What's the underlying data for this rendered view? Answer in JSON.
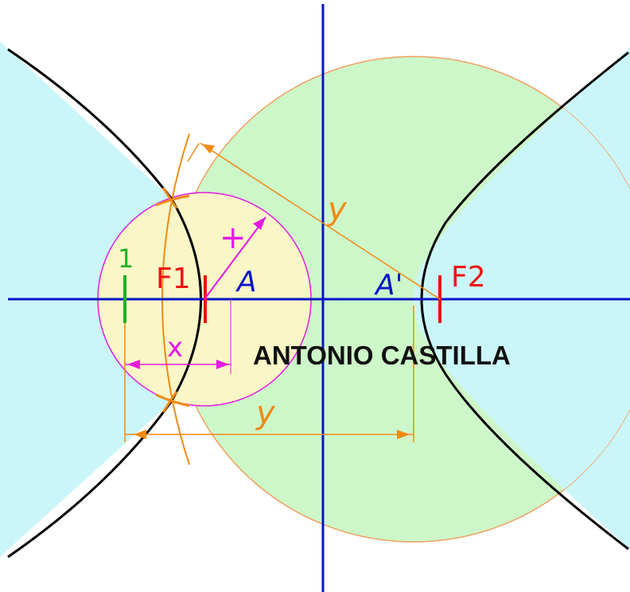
{
  "labels": {
    "f1": "F1",
    "f2": "F2",
    "a": "A",
    "a_prime": "A'",
    "one": "1",
    "x_top": "+",
    "x_bottom": "x",
    "y_top": "y",
    "y_bottom": "y"
  },
  "credit": "ANTONIO CASTILLA",
  "colors": {
    "axis": "#0a14c8",
    "curve": "#000000",
    "big_circle_fill": "#cdf7c9",
    "small_circle_fill": "#fbf6c7",
    "region_fill": "#cbf6f9",
    "construction": "#f08a14",
    "magenta": "#e21ae2",
    "focus": "#ee1111",
    "green_mark": "#22b022"
  }
}
